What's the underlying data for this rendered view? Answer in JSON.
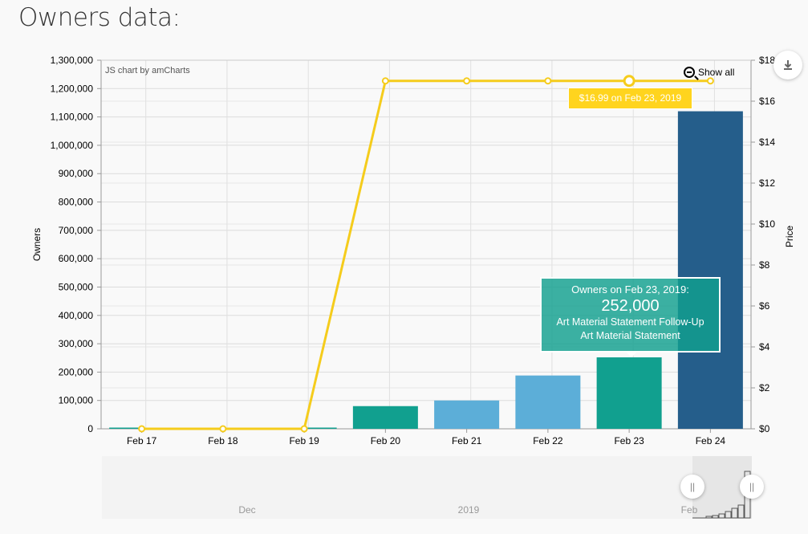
{
  "page": {
    "title": "Owners data:"
  },
  "toolbar": {
    "show_all_label": "Show all",
    "credit": "JS chart by amCharts"
  },
  "tooltips": {
    "bar": {
      "header": "Owners on Feb 23, 2019:",
      "value": "252,000",
      "line1": "Art Material Statement Follow-Up",
      "line2": "Art Material Statement"
    },
    "line": {
      "text": "$16.99 on Feb 23, 2019"
    }
  },
  "chart_data": {
    "type": "bar",
    "categories": [
      "Feb 17",
      "Feb 18",
      "Feb 19",
      "Feb 20",
      "Feb 21",
      "Feb 22",
      "Feb 23",
      "Feb 24"
    ],
    "series": [
      {
        "name": "Owners",
        "type": "bar",
        "axis": "left",
        "values": [
          0,
          0,
          0,
          80000,
          100000,
          188000,
          252000,
          1120000
        ],
        "colors": [
          "#11a08f",
          "#11a08f",
          "#11a08f",
          "#11a08f",
          "#5caed8",
          "#5caed8",
          "#11a08f",
          "#255e8b"
        ]
      },
      {
        "name": "Price",
        "type": "line",
        "axis": "right",
        "values": [
          0,
          0,
          0,
          16.99,
          16.99,
          16.99,
          16.99,
          16.99
        ],
        "color": "#f5cc1c"
      }
    ],
    "ylabel": "Owners",
    "y2label": "Price",
    "ylim": [
      0,
      1300000
    ],
    "y2lim": [
      0,
      18
    ],
    "yticks": [
      "0",
      "100,000",
      "200,000",
      "300,000",
      "400,000",
      "500,000",
      "600,000",
      "700,000",
      "800,000",
      "900,000",
      "1,000,000",
      "1,100,000",
      "1,200,000",
      "1,300,000"
    ],
    "y2ticks": [
      "$0",
      "$2",
      "$4",
      "$6",
      "$8",
      "$10",
      "$12",
      "$14",
      "$16",
      "$18"
    ],
    "grid": true,
    "highlighted_category": "Feb 23"
  },
  "scrollbar": {
    "labels": [
      "Dec",
      "2019",
      "Feb"
    ]
  }
}
